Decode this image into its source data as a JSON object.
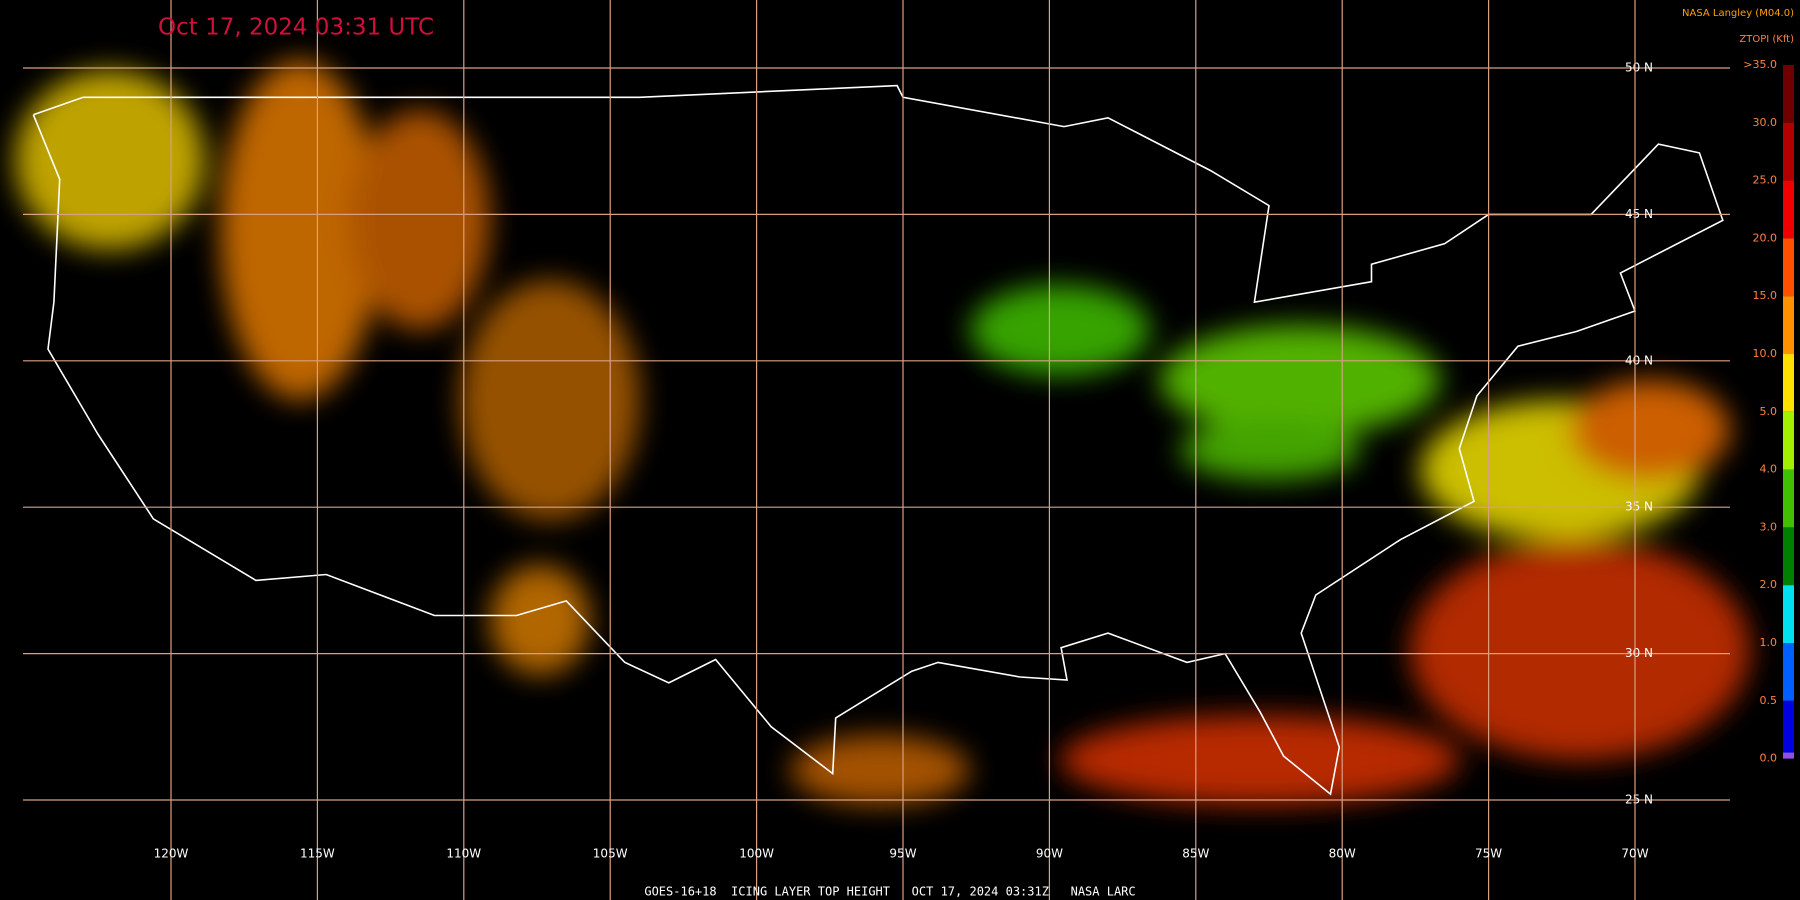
{
  "header": {
    "title": "Oct 17, 2024 03:31 UTC",
    "credit": "NASA Langley (M04.0)"
  },
  "legend": {
    "title": "ZTOPI (Kft)",
    "labels": [
      ">35.0",
      "30.0",
      "25.0",
      "20.0",
      "15.0",
      "10.0",
      "5.0",
      "4.0",
      "3.0",
      "2.0",
      "1.0",
      "0.5",
      "0.0"
    ]
  },
  "grid": {
    "latitudes": [
      "50 N",
      "45 N",
      "40 N",
      "35 N",
      "30 N",
      "25 N"
    ],
    "longitudes": [
      "120W",
      "115W",
      "110W",
      "105W",
      "100W",
      "95W",
      "90W",
      "85W",
      "80W",
      "75W",
      "70W"
    ]
  },
  "footer": "GOES-16+18  ICING LAYER TOP HEIGHT   OCT 17, 2024 03:31Z   NASA LARC"
}
